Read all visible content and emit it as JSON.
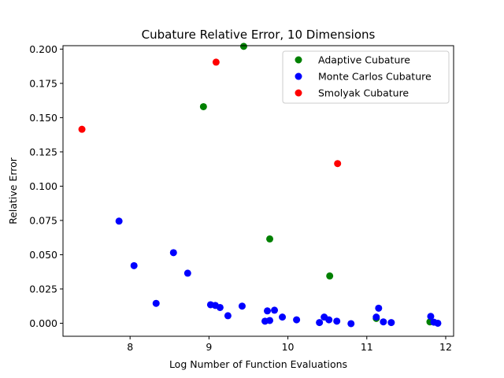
{
  "chart_data": {
    "type": "scatter",
    "title": "Cubature Relative Error, 10 Dimensions",
    "xlabel": "Log Number of Function Evaluations",
    "ylabel": "Relative Error",
    "xlim": [
      7.15,
      12.1
    ],
    "ylim": [
      -0.0095,
      0.2025
    ],
    "xticks": [
      8,
      9,
      10,
      11,
      12
    ],
    "yticks": [
      0.0,
      0.025,
      0.05,
      0.075,
      0.1,
      0.125,
      0.15,
      0.175,
      0.2
    ],
    "ytick_labels": [
      "0.000",
      "0.025",
      "0.050",
      "0.075",
      "0.100",
      "0.125",
      "0.150",
      "0.175",
      "0.200"
    ],
    "grid": false,
    "legend_position": "top-right",
    "series": [
      {
        "name": "Adaptive Cubature",
        "color": "#008000",
        "points": [
          [
            8.93,
            0.158
          ],
          [
            9.44,
            0.202
          ],
          [
            9.77,
            0.0615
          ],
          [
            10.53,
            0.0345
          ],
          [
            11.12,
            0.0035
          ],
          [
            11.8,
            0.001
          ]
        ]
      },
      {
        "name": "Monte Carlos Cubature",
        "color": "#0000ff",
        "points": [
          [
            7.86,
            0.0745
          ],
          [
            8.05,
            0.042
          ],
          [
            8.33,
            0.0145
          ],
          [
            8.55,
            0.0515
          ],
          [
            8.73,
            0.0365
          ],
          [
            9.02,
            0.0135
          ],
          [
            9.08,
            0.013
          ],
          [
            9.14,
            0.0115
          ],
          [
            9.24,
            0.0055
          ],
          [
            9.42,
            0.0125
          ],
          [
            9.71,
            0.0015
          ],
          [
            9.74,
            0.009
          ],
          [
            9.77,
            0.002
          ],
          [
            9.83,
            0.0095
          ],
          [
            9.93,
            0.0045
          ],
          [
            10.11,
            0.0025
          ],
          [
            10.4,
            0.0005
          ],
          [
            10.46,
            0.0045
          ],
          [
            10.52,
            0.0025
          ],
          [
            10.62,
            0.0015
          ],
          [
            10.8,
            -0.0003
          ],
          [
            11.12,
            0.0045
          ],
          [
            11.15,
            0.011
          ],
          [
            11.21,
            0.001
          ],
          [
            11.31,
            0.0005
          ],
          [
            11.81,
            0.005
          ],
          [
            11.85,
            0.0008
          ],
          [
            11.9,
            0.0
          ]
        ]
      },
      {
        "name": "Smolyak Cubature",
        "color": "#ff0000",
        "points": [
          [
            7.39,
            0.1415
          ],
          [
            9.09,
            0.1905
          ],
          [
            10.63,
            0.1165
          ]
        ]
      }
    ]
  }
}
